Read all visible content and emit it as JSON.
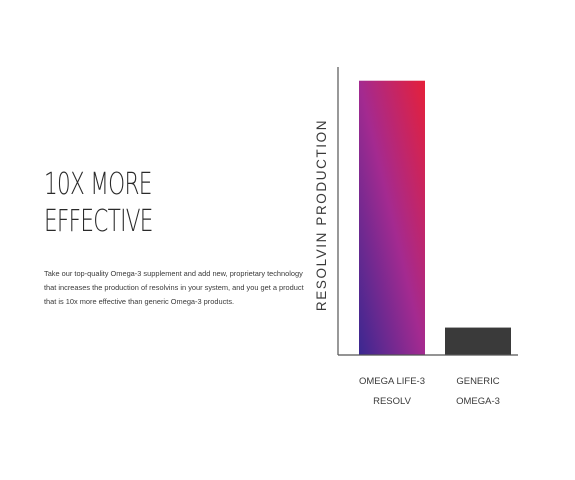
{
  "headline": [
    "10X MORE",
    "EFFECTIVE"
  ],
  "body_lines": [
    "Take our top-quality Omega-3 supplement and add new, proprietary technology",
    "that increases the production of resolvins in your system, and you get a product",
    "that is 10x more effective than generic Omega-3 products."
  ],
  "colors": {
    "bar_gradient_top": "#e5203a",
    "bar_gradient_mid": "#a42a90",
    "bar_gradient_bottom": "#3a2890",
    "generic_bar": "#3a3a3a",
    "axis": "#555555",
    "text": "#2a2a2a"
  },
  "chart_data": {
    "type": "bar",
    "ylabel": "RESOLVIN PRODUCTION",
    "xlabel": "",
    "categories": [
      [
        "OMEGA LIFE-3",
        "RESOLV"
      ],
      [
        "GENERIC",
        "OMEGA-3"
      ]
    ],
    "values": [
      10,
      1
    ],
    "ylim": [
      0,
      10.5
    ],
    "grid": false,
    "legend": "none"
  }
}
